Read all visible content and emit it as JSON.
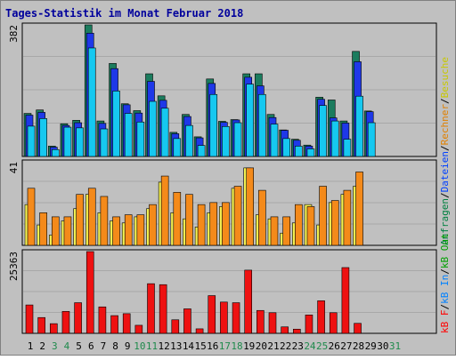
{
  "title": "Tages-Statistik im Monat Februar 2018",
  "legend": {
    "top_parts": [
      {
        "text": "Anfragen",
        "color": "#008040"
      },
      {
        "text": "/",
        "color": "#000000"
      },
      {
        "text": "Dateien",
        "color": "#0040ff"
      },
      {
        "text": "/",
        "color": "#000000"
      },
      {
        "text": "Rechner",
        "color": "#e08000"
      },
      {
        "text": "/",
        "color": "#000000"
      },
      {
        "text": "Besuche",
        "color": "#c8c800"
      }
    ],
    "bottom_parts": [
      {
        "text": "kB F",
        "color": "#ff0000"
      },
      {
        "text": "/",
        "color": "#000000"
      },
      {
        "text": "kB In",
        "color": "#0080ff"
      },
      {
        "text": "/",
        "color": "#000000"
      },
      {
        "text": "kB Out",
        "color": "#00a000"
      }
    ]
  },
  "colors": {
    "anfragen": "#1b7c5e",
    "dateien": "#1e38e8",
    "seiten": "#16c8f0",
    "besuche": "#f4f050",
    "rechner": "#f48a1a",
    "kbf": "#ee1111",
    "weekday_label": "#000000",
    "weekend_label": "#1f8a4c"
  },
  "chart_data": [
    {
      "type": "bar",
      "title": "Tages-Statistik im Monat Februar 2018",
      "ylabel": "382",
      "ylim": [
        0,
        382
      ],
      "categories": [
        "1",
        "2",
        "3",
        "4",
        "5",
        "6",
        "7",
        "8",
        "9",
        "10",
        "11",
        "12",
        "13",
        "14",
        "15",
        "16",
        "17",
        "18",
        "19",
        "20",
        "21",
        "22",
        "23",
        "24",
        "25",
        "26",
        "27",
        "28",
        "29",
        "30",
        "31"
      ],
      "weekend_days": [
        "3",
        "4",
        "10",
        "11",
        "17",
        "18",
        "24",
        "25",
        "31"
      ],
      "series": [
        {
          "name": "Anfragen",
          "values": [
            125,
            135,
            30,
            95,
            105,
            382,
            103,
            270,
            153,
            133,
            240,
            176,
            70,
            122,
            57,
            225,
            102,
            107,
            240,
            240,
            122,
            77,
            50,
            33,
            172,
            164,
            103,
            305,
            132,
            0,
            0
          ]
        },
        {
          "name": "Dateien",
          "values": [
            120,
            128,
            27,
            90,
            98,
            358,
            96,
            255,
            150,
            126,
            218,
            163,
            66,
            116,
            54,
            212,
            99,
            106,
            230,
            205,
            113,
            76,
            47,
            30,
            166,
            112,
            97,
            275,
            130,
            0,
            0
          ]
        },
        {
          "name": "Seiten",
          "values": [
            88,
            110,
            20,
            85,
            83,
            315,
            80,
            190,
            125,
            100,
            160,
            140,
            52,
            90,
            32,
            180,
            87,
            98,
            210,
            180,
            94,
            52,
            30,
            22,
            148,
            103,
            50,
            175,
            98,
            0,
            0
          ]
        }
      ]
    },
    {
      "type": "bar",
      "ylabel": "41",
      "ylim": [
        0,
        41
      ],
      "categories": [
        "1",
        "2",
        "3",
        "4",
        "5",
        "6",
        "7",
        "8",
        "9",
        "10",
        "11",
        "12",
        "13",
        "14",
        "15",
        "16",
        "17",
        "18",
        "19",
        "20",
        "21",
        "22",
        "23",
        "24",
        "25",
        "26",
        "27",
        "28",
        "29",
        "30",
        "31"
      ],
      "series": [
        {
          "name": "Besuche",
          "values": [
            20,
            10,
            5,
            12,
            18,
            25,
            16,
            12,
            11,
            14,
            18,
            31,
            16,
            13,
            9,
            16,
            19,
            28,
            38,
            15,
            13,
            6,
            11,
            20,
            10,
            21,
            25,
            29,
            0,
            0,
            0
          ]
        },
        {
          "name": "Rechner",
          "values": [
            28,
            16,
            14,
            14,
            25,
            28,
            24,
            14,
            15,
            15,
            20,
            34,
            26,
            25,
            20,
            21,
            21,
            29,
            38,
            27,
            14,
            14,
            20,
            19,
            29,
            22,
            27,
            36,
            0,
            0,
            0
          ]
        }
      ]
    },
    {
      "type": "bar",
      "ylabel": "25363",
      "ylim": [
        0,
        25363
      ],
      "categories": [
        "1",
        "2",
        "3",
        "4",
        "5",
        "6",
        "7",
        "8",
        "9",
        "10",
        "11",
        "12",
        "13",
        "14",
        "15",
        "16",
        "17",
        "18",
        "19",
        "20",
        "21",
        "22",
        "23",
        "24",
        "25",
        "26",
        "27",
        "28",
        "29",
        "30",
        "31"
      ],
      "series": [
        {
          "name": "kB F",
          "values": [
            8800,
            4900,
            3000,
            6800,
            9500,
            25363,
            8200,
            5500,
            6100,
            2500,
            15400,
            15100,
            4200,
            7600,
            1400,
            11700,
            9700,
            9500,
            19600,
            7100,
            6400,
            2000,
            1300,
            5700,
            10100,
            6400,
            20400,
            3100,
            0,
            0,
            0
          ]
        }
      ]
    }
  ]
}
